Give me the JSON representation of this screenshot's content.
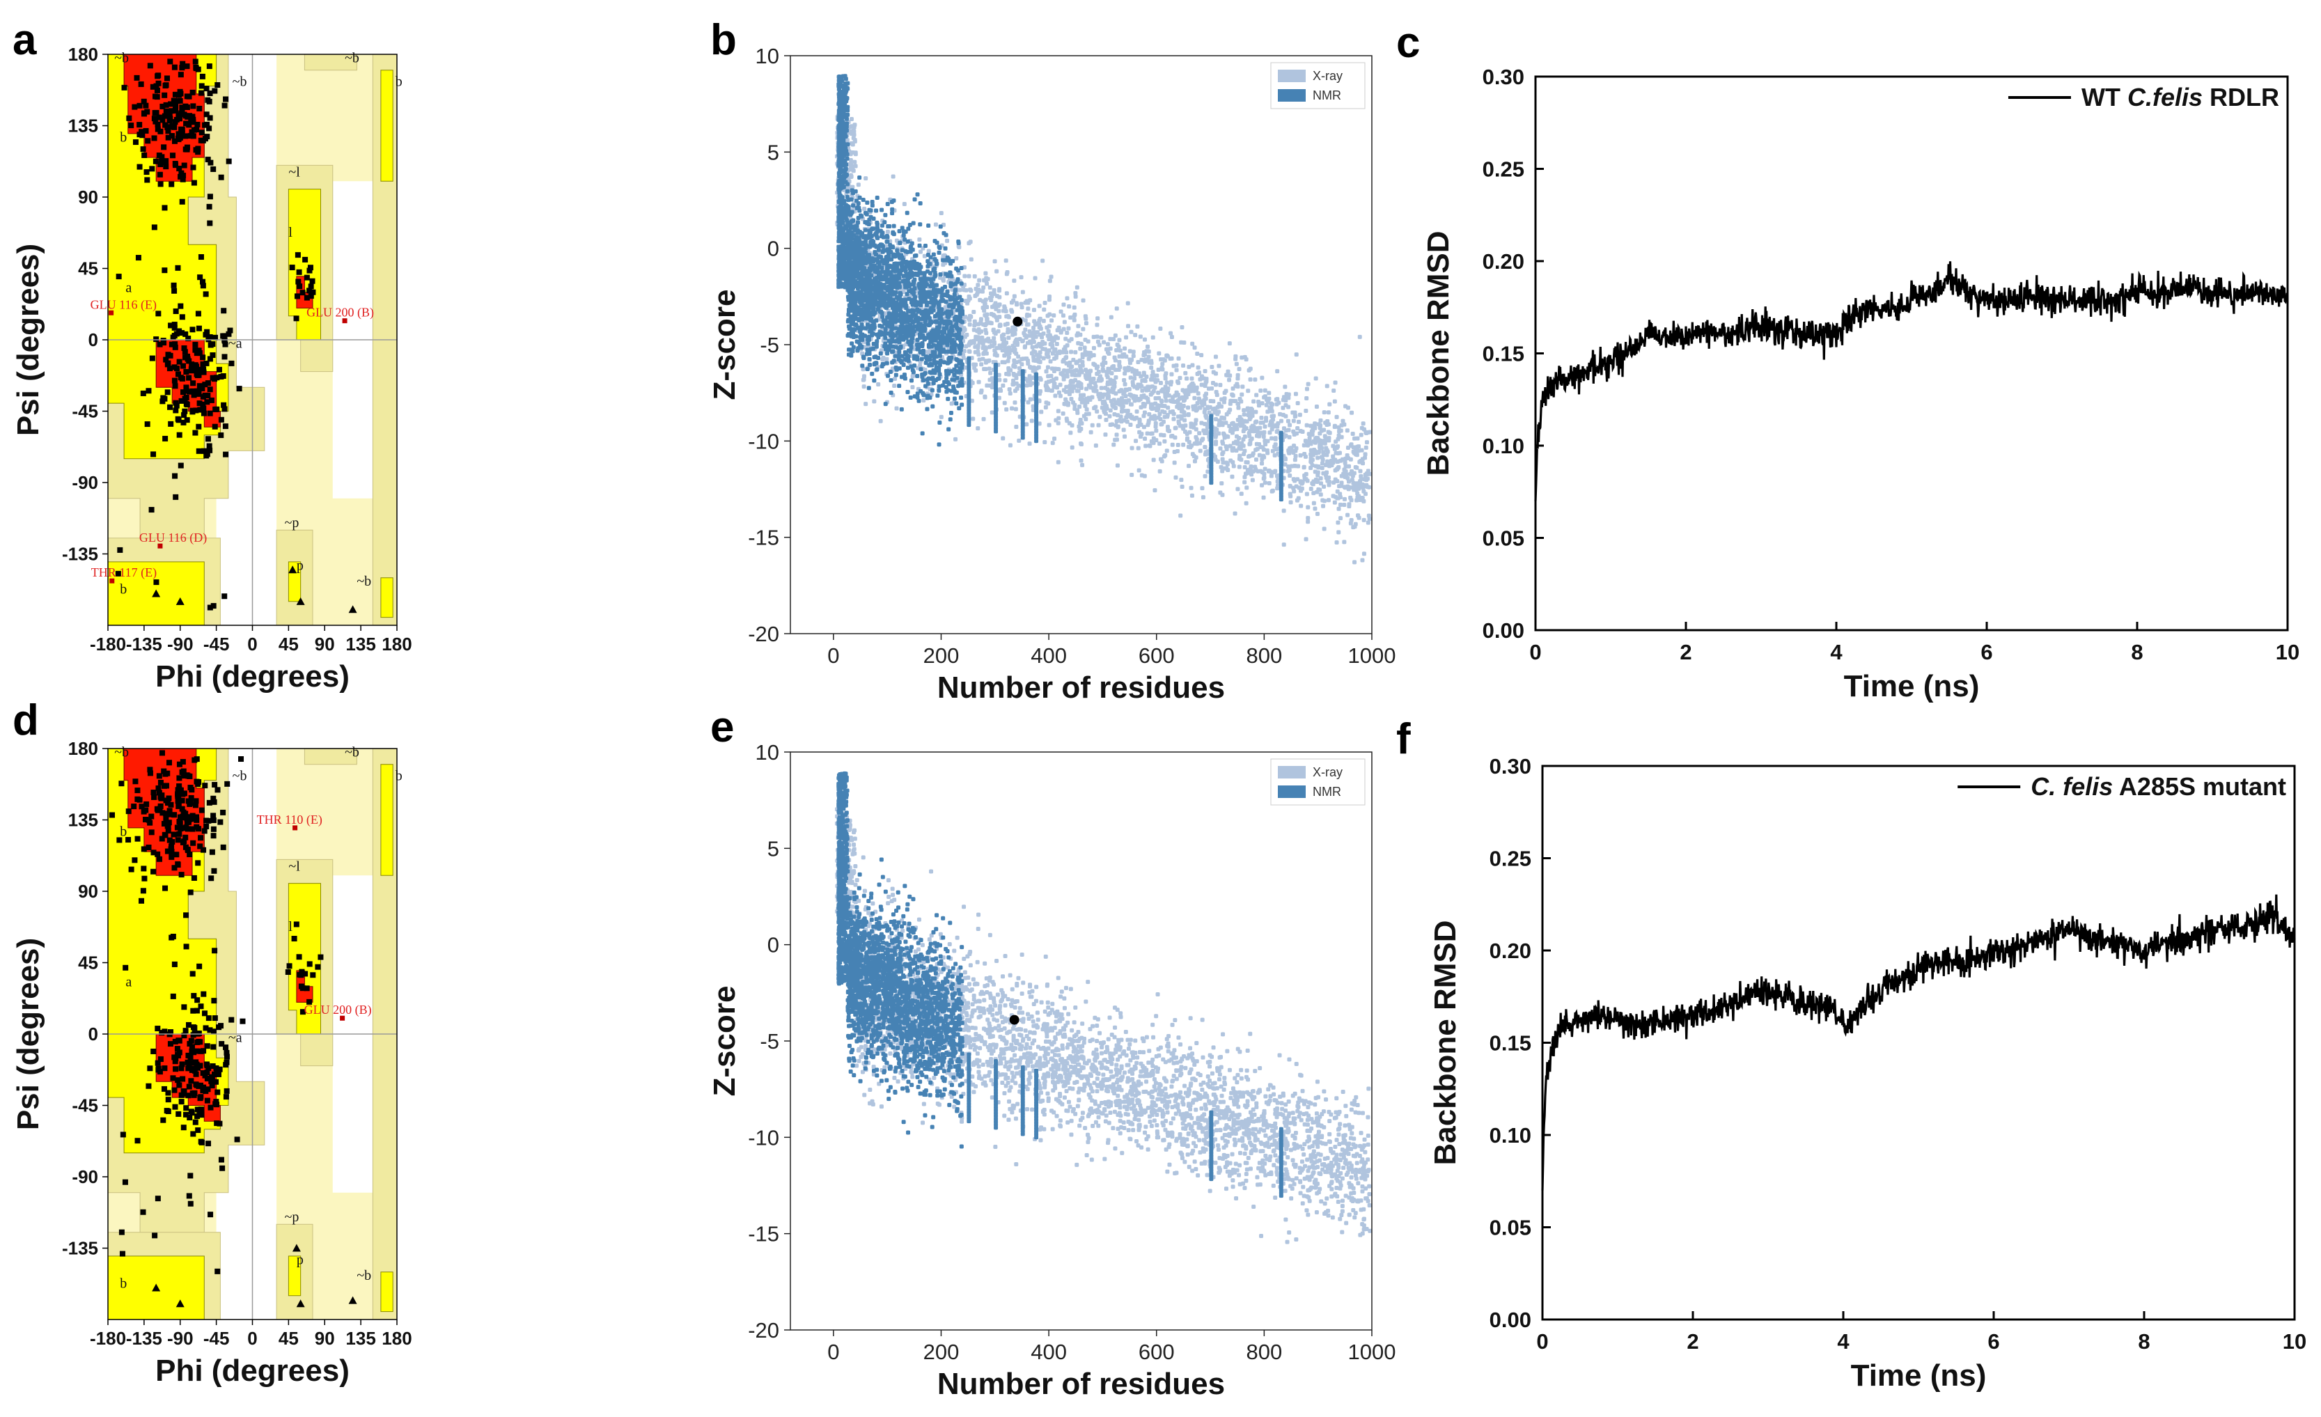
{
  "panel_labels": [
    "a",
    "b",
    "c",
    "d",
    "e",
    "f"
  ],
  "colors": {
    "core": "#ff1a00",
    "allowed": "#ffff00",
    "generous": "#f0eaa0",
    "generous_edge": "#fbf6c0",
    "xray": "#b0c4de",
    "nmr": "#4682b4",
    "rmsd_line": "#000000"
  },
  "chart_data": [
    {
      "panel": "a",
      "type": "scatter",
      "title": "",
      "xlabel": "Phi (degrees)",
      "ylabel": "Psi (degrees)",
      "xlim": [
        -180,
        180
      ],
      "ylim": [
        -180,
        180
      ],
      "xticks": [
        -180,
        -135,
        -90,
        -45,
        0,
        45,
        90,
        135,
        180
      ],
      "yticks": [
        -135,
        -90,
        -45,
        0,
        45,
        90,
        135,
        180
      ],
      "region_labels": [
        "b",
        "~b",
        "~b",
        "b",
        "a",
        "~a",
        "l",
        "~l",
        "~p",
        "p",
        "~b",
        "b",
        "~b"
      ],
      "annotations": [
        "GLU 116 (E)",
        "GLU 200 (B)",
        "GLU 116 (D)",
        "THR 117 (E)"
      ],
      "annotation_points": [
        [
          -176,
          17
        ],
        [
          115,
          12
        ],
        [
          -115,
          -130
        ],
        [
          -175,
          -152
        ]
      ],
      "clusters": [
        {
          "center": [
            -95,
            138
          ],
          "spread": [
            28,
            20
          ],
          "count": 180
        },
        {
          "center": [
            -72,
            -22
          ],
          "spread": [
            22,
            24
          ],
          "count": 170
        },
        {
          "center": [
            62,
            35
          ],
          "spread": [
            10,
            12
          ],
          "count": 18
        }
      ],
      "glycines": [
        [
          -120,
          -160
        ],
        [
          -90,
          -165
        ],
        [
          50,
          -145
        ],
        [
          60,
          -165
        ],
        [
          125,
          -170
        ]
      ]
    },
    {
      "panel": "b",
      "type": "scatter",
      "title": "",
      "xlabel": "Number of residues",
      "ylabel": "Z-score",
      "xlim": [
        -80,
        1000
      ],
      "ylim": [
        -20,
        10
      ],
      "xticks": [
        0,
        200,
        400,
        600,
        800,
        1000
      ],
      "yticks": [
        -20,
        -15,
        -10,
        -5,
        0,
        5,
        10
      ],
      "legend": [
        "X-ray",
        "NMR"
      ],
      "highlight": {
        "residues": 342,
        "z": -3.8
      }
    },
    {
      "panel": "c",
      "type": "line",
      "title": "",
      "xlabel": "Time (ns)",
      "ylabel": "Backbone RMSD",
      "xlim": [
        0,
        10
      ],
      "ylim": [
        0,
        0.3
      ],
      "xticks": [
        0,
        2,
        4,
        6,
        8,
        10
      ],
      "yticks": [
        "0.00",
        "0.05",
        "0.10",
        "0.15",
        "0.20",
        "0.25",
        "0.30"
      ],
      "legend_prefix": "WT ",
      "legend_italic": "C.felis",
      "legend_suffix": " RDLR",
      "series": [
        {
          "name": "WT C.felis RDLR",
          "x": [
            0,
            0.02,
            0.05,
            0.1,
            0.2,
            0.3,
            0.5,
            0.7,
            1.0,
            1.2,
            1.4,
            1.5,
            1.8,
            2.0,
            2.3,
            2.6,
            3.0,
            3.3,
            3.6,
            3.9,
            4.0,
            4.2,
            4.5,
            4.8,
            5.0,
            5.2,
            5.4,
            5.5,
            5.8,
            6.0,
            6.3,
            6.6,
            6.9,
            7.2,
            7.6,
            8.0,
            8.3,
            8.6,
            9.0,
            9.3,
            9.6,
            10.0
          ],
          "values": [
            0.07,
            0.095,
            0.112,
            0.125,
            0.131,
            0.135,
            0.138,
            0.142,
            0.145,
            0.15,
            0.156,
            0.16,
            0.158,
            0.16,
            0.163,
            0.16,
            0.165,
            0.162,
            0.161,
            0.158,
            0.16,
            0.17,
            0.175,
            0.172,
            0.18,
            0.183,
            0.188,
            0.192,
            0.182,
            0.18,
            0.178,
            0.182,
            0.178,
            0.18,
            0.178,
            0.183,
            0.182,
            0.186,
            0.183,
            0.181,
            0.184,
            0.18
          ],
          "noise": 0.004
        }
      ]
    },
    {
      "panel": "d",
      "type": "scatter",
      "title": "",
      "xlabel": "Phi (degrees)",
      "ylabel": "Psi (degrees)",
      "xlim": [
        -180,
        180
      ],
      "ylim": [
        -180,
        180
      ],
      "xticks": [
        -180,
        -135,
        -90,
        -45,
        0,
        45,
        90,
        135,
        180
      ],
      "yticks": [
        -135,
        -90,
        -45,
        0,
        45,
        90,
        135,
        180
      ],
      "region_labels": [
        "b",
        "~b",
        "~b",
        "b",
        "a",
        "~a",
        "l",
        "~l",
        "~p",
        "p",
        "~b",
        "b",
        "~b"
      ],
      "annotations": [
        "THR 110 (E)",
        "GLU 200 (B)"
      ],
      "annotation_points": [
        [
          53,
          130
        ],
        [
          112,
          10
        ]
      ],
      "clusters": [
        {
          "center": [
            -95,
            140
          ],
          "spread": [
            28,
            20
          ],
          "count": 190
        },
        {
          "center": [
            -72,
            -22
          ],
          "spread": [
            22,
            24
          ],
          "count": 170
        },
        {
          "center": [
            62,
            37
          ],
          "spread": [
            10,
            12
          ],
          "count": 18
        }
      ],
      "glycines": [
        [
          -120,
          -160
        ],
        [
          -90,
          -170
        ],
        [
          55,
          -135
        ],
        [
          60,
          -170
        ],
        [
          125,
          -168
        ]
      ]
    },
    {
      "panel": "e",
      "type": "scatter",
      "title": "",
      "xlabel": "Number of residues",
      "ylabel": "Z-score",
      "xlim": [
        -80,
        1000
      ],
      "ylim": [
        -20,
        10
      ],
      "xticks": [
        0,
        200,
        400,
        600,
        800,
        1000
      ],
      "yticks": [
        -20,
        -15,
        -10,
        -5,
        0,
        5,
        10
      ],
      "legend": [
        "X-ray",
        "NMR"
      ],
      "highlight": {
        "residues": 336,
        "z": -3.9
      }
    },
    {
      "panel": "f",
      "type": "line",
      "title": "",
      "xlabel": "Time (ns)",
      "ylabel": "Backbone RMSD",
      "xlim": [
        0,
        10
      ],
      "ylim": [
        0,
        0.3
      ],
      "xticks": [
        0,
        2,
        4,
        6,
        8,
        10
      ],
      "yticks": [
        "0.00",
        "0.05",
        "0.10",
        "0.15",
        "0.20",
        "0.25",
        "0.30"
      ],
      "legend_prefix": "",
      "legend_italic": "C. felis",
      "legend_suffix": " A285S mutant",
      "series": [
        {
          "name": "C. felis A285S mutant",
          "x": [
            0,
            0.02,
            0.05,
            0.1,
            0.2,
            0.3,
            0.5,
            0.8,
            1.0,
            1.3,
            1.6,
            2.0,
            2.3,
            2.6,
            2.9,
            3.2,
            3.5,
            3.8,
            4.0,
            4.2,
            4.5,
            4.8,
            5.0,
            5.3,
            5.6,
            5.9,
            6.2,
            6.5,
            6.8,
            7.0,
            7.3,
            7.6,
            7.9,
            8.0,
            8.3,
            8.6,
            8.9,
            9.2,
            9.5,
            9.7,
            10.0
          ],
          "values": [
            0.07,
            0.11,
            0.13,
            0.145,
            0.155,
            0.16,
            0.162,
            0.165,
            0.163,
            0.16,
            0.162,
            0.165,
            0.168,
            0.172,
            0.178,
            0.176,
            0.172,
            0.17,
            0.16,
            0.165,
            0.178,
            0.185,
            0.19,
            0.195,
            0.193,
            0.198,
            0.2,
            0.203,
            0.208,
            0.212,
            0.206,
            0.205,
            0.2,
            0.198,
            0.205,
            0.207,
            0.21,
            0.212,
            0.215,
            0.22,
            0.205
          ],
          "noise": 0.004
        }
      ]
    }
  ]
}
